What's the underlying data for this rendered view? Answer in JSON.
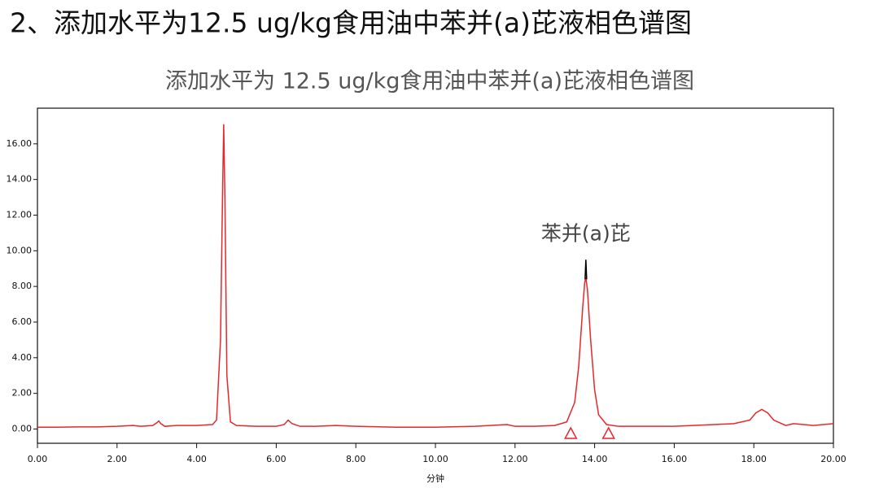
{
  "chart_data": {
    "type": "line",
    "heading": "2、添加水平为12.5 ug/kg食用油中苯并(a)芘液相色谱图",
    "title": "添加水平为 12.5 ug/kg食用油中苯并(a)芘液相色谱图",
    "x_label": "分钟",
    "annotation": {
      "text": "苯并(a)芘",
      "x": 13.78,
      "y": 10.9
    },
    "xlim": [
      0,
      20
    ],
    "ylim": [
      -0.8,
      18.0
    ],
    "xticks": [
      {
        "value": 0,
        "label": "0.00"
      },
      {
        "value": 2,
        "label": "2.00"
      },
      {
        "value": 4,
        "label": "4.00"
      },
      {
        "value": 6,
        "label": "6.00"
      },
      {
        "value": 8,
        "label": "8.00"
      },
      {
        "value": 10,
        "label": "10.00"
      },
      {
        "value": 12,
        "label": "12.00"
      },
      {
        "value": 14,
        "label": "14.00"
      },
      {
        "value": 16,
        "label": "16.00"
      },
      {
        "value": 18,
        "label": "18.00"
      },
      {
        "value": 20,
        "label": "20.00"
      }
    ],
    "yticks": [
      {
        "value": 0,
        "label": "0.00"
      },
      {
        "value": 2,
        "label": "2.00"
      },
      {
        "value": 4,
        "label": "4.00"
      },
      {
        "value": 6,
        "label": "6.00"
      },
      {
        "value": 8,
        "label": "8.00"
      },
      {
        "value": 10,
        "label": "10.00"
      },
      {
        "value": 12,
        "label": "12.00"
      },
      {
        "value": 14,
        "label": "14.00"
      },
      {
        "value": 16,
        "label": "16.00"
      }
    ],
    "series": [
      {
        "color": "#e8262b",
        "x": [
          0,
          0.5,
          1,
          1.5,
          2,
          2.4,
          2.6,
          2.9,
          3.0,
          3.05,
          3.1,
          3.2,
          3.5,
          4.0,
          4.4,
          4.5,
          4.6,
          4.65,
          4.68,
          4.71,
          4.76,
          4.85,
          5.0,
          5.5,
          6.0,
          6.2,
          6.3,
          6.4,
          6.6,
          7.0,
          7.5,
          8.0,
          9,
          10,
          11,
          11.8,
          12,
          12.5,
          13.0,
          13.3,
          13.5,
          13.6,
          13.7,
          13.75,
          13.78,
          13.82,
          13.9,
          14.0,
          14.1,
          14.3,
          14.6,
          15,
          16,
          17,
          17.5,
          17.9,
          18.05,
          18.2,
          18.35,
          18.5,
          18.8,
          19,
          19.5,
          20
        ],
        "values": [
          0.1,
          0.1,
          0.12,
          0.12,
          0.15,
          0.2,
          0.15,
          0.2,
          0.35,
          0.45,
          0.3,
          0.15,
          0.2,
          0.2,
          0.25,
          0.5,
          5,
          13,
          17.1,
          13,
          3,
          0.4,
          0.2,
          0.15,
          0.15,
          0.25,
          0.5,
          0.3,
          0.15,
          0.15,
          0.2,
          0.15,
          0.1,
          0.1,
          0.15,
          0.25,
          0.15,
          0.15,
          0.2,
          0.4,
          1.5,
          3.5,
          6.8,
          8.2,
          8.5,
          7.8,
          5,
          2.2,
          0.8,
          0.25,
          0.15,
          0.15,
          0.15,
          0.25,
          0.3,
          0.5,
          0.9,
          1.1,
          0.9,
          0.5,
          0.2,
          0.3,
          0.2,
          0.3
        ]
      },
      {
        "color": "#000000",
        "x": [
          13.76,
          13.78,
          13.8
        ],
        "values": [
          8.4,
          9.5,
          8.4
        ]
      }
    ],
    "peak_marks": {
      "x": [
        13.4,
        14.35
      ],
      "color": "#e8262b"
    }
  }
}
